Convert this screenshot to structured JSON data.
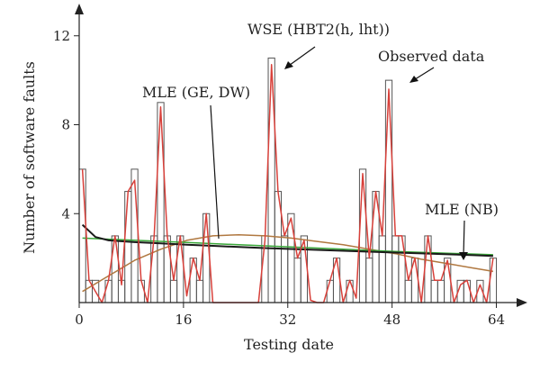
{
  "chart_data": {
    "type": "bar",
    "xlabel": "Testing date",
    "ylabel": "Number of software faults",
    "xlim": [
      0,
      66
    ],
    "ylim": [
      0,
      12.8
    ],
    "x_ticks": [
      "0",
      "16",
      "32",
      "48",
      "64"
    ],
    "y_ticks": [
      "4",
      "8",
      "12"
    ],
    "observed": {
      "name": "Observed data",
      "x": [
        0,
        1,
        2,
        3,
        4,
        5,
        6,
        7,
        8,
        9,
        10,
        11,
        12,
        13,
        14,
        15,
        16,
        17,
        18,
        19,
        20,
        21,
        22,
        23,
        24,
        25,
        26,
        27,
        28,
        29,
        30,
        31,
        32,
        33,
        34,
        35,
        36,
        37,
        38,
        39,
        40,
        41,
        42,
        43,
        44,
        45,
        46,
        47,
        48,
        49,
        50,
        51,
        52,
        53,
        54,
        55,
        56,
        57,
        58,
        59,
        60,
        61,
        62,
        63
      ],
      "values": [
        6,
        1,
        1,
        0,
        1,
        3,
        1,
        5,
        6,
        1,
        0,
        3,
        9,
        3,
        1,
        3,
        0,
        2,
        1,
        4,
        0,
        0,
        0,
        0,
        0,
        0,
        0,
        0,
        3,
        11,
        5,
        3,
        4,
        2,
        3,
        0,
        0,
        0,
        1,
        2,
        0,
        1,
        0,
        6,
        2,
        5,
        3,
        10,
        3,
        3,
        1,
        2,
        0,
        3,
        1,
        1,
        2,
        0,
        1,
        1,
        0,
        1,
        0,
        2
      ]
    },
    "series": [
      {
        "name": "WSE (HBT2(h, lht))",
        "color": "#d8403a",
        "x": [
          0,
          1,
          2,
          3,
          4,
          5,
          6,
          7,
          8,
          9,
          10,
          11,
          12,
          13,
          14,
          15,
          16,
          17,
          18,
          19,
          20,
          21,
          22,
          23,
          24,
          25,
          26,
          27,
          28,
          29,
          30,
          31,
          32,
          33,
          34,
          35,
          36,
          37,
          38,
          39,
          40,
          41,
          42,
          43,
          44,
          45,
          46,
          47,
          48,
          49,
          50,
          51,
          52,
          53,
          54,
          55,
          56,
          57,
          58,
          59,
          60,
          61,
          62,
          63
        ],
        "values": [
          6,
          1,
          0.5,
          0,
          1,
          3,
          0.8,
          5,
          5.5,
          1,
          0,
          3,
          8.8,
          3,
          1,
          3,
          0.3,
          2,
          1,
          4,
          0,
          0,
          0,
          0,
          0,
          0,
          0,
          0,
          2.8,
          10.7,
          5,
          3,
          3.8,
          2,
          2.8,
          0.1,
          0,
          0,
          1,
          2,
          0,
          1,
          0.2,
          5.8,
          2,
          5,
          3,
          9.6,
          3,
          3,
          1,
          2,
          0,
          3,
          1,
          1,
          1.9,
          0,
          0.8,
          1,
          0,
          0.8,
          0,
          2
        ]
      },
      {
        "name": "MLE (GE, DW)",
        "color": "#b07840",
        "x": [
          0,
          4,
          8,
          12,
          16,
          20,
          24,
          28,
          32,
          36,
          40,
          44,
          48,
          52,
          56,
          60,
          63
        ],
        "values": [
          0.5,
          1.2,
          1.9,
          2.4,
          2.8,
          3.0,
          3.05,
          3.0,
          2.9,
          2.75,
          2.6,
          2.4,
          2.2,
          1.95,
          1.75,
          1.55,
          1.4
        ]
      },
      {
        "name": "MLE (NB)",
        "color": "#1a1a1a",
        "x": [
          0,
          2,
          4,
          8,
          12,
          16,
          20,
          24,
          28,
          32,
          36,
          40,
          44,
          48,
          52,
          56,
          60,
          63
        ],
        "values": [
          3.5,
          2.95,
          2.8,
          2.72,
          2.66,
          2.6,
          2.55,
          2.5,
          2.45,
          2.41,
          2.37,
          2.33,
          2.29,
          2.25,
          2.21,
          2.17,
          2.13,
          2.1
        ]
      },
      {
        "name": "",
        "color": "#3aa83a",
        "x": [
          0,
          16,
          32,
          48,
          63
        ],
        "values": [
          2.9,
          2.7,
          2.5,
          2.3,
          2.15
        ]
      }
    ],
    "annotations": [
      {
        "text": "WSE (HBT2(h, lht))"
      },
      {
        "text": "Observed data"
      },
      {
        "text": "MLE (GE, DW)"
      },
      {
        "text": "MLE (NB)"
      }
    ]
  }
}
